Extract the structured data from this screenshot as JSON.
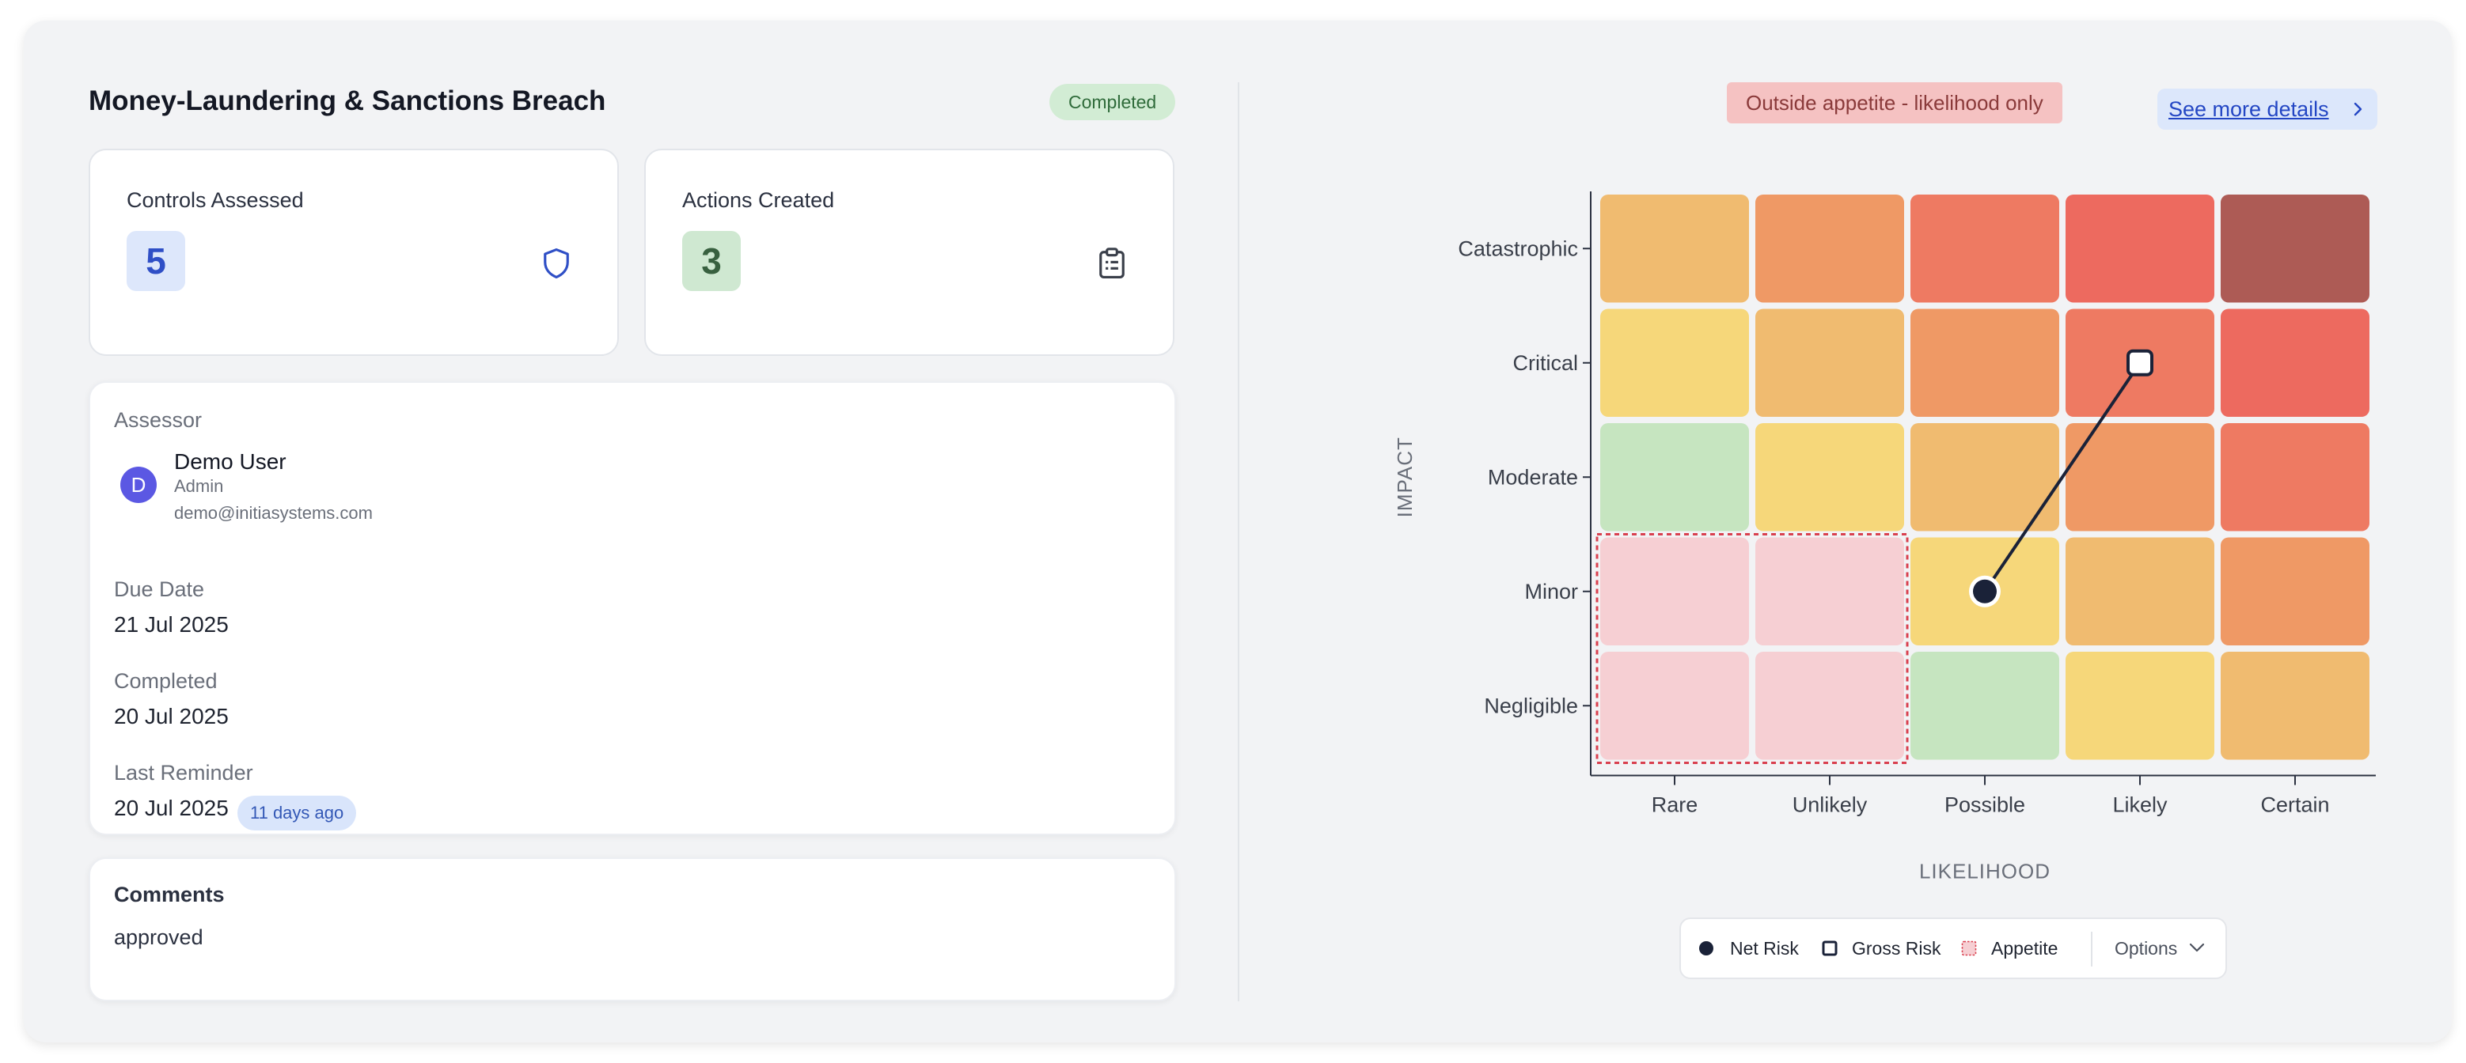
{
  "risk": {
    "title": "Money-Laundering & Sanctions Breach",
    "status": "Completed"
  },
  "metrics": {
    "controls_label": "Controls Assessed",
    "controls_value": "5",
    "controls_icon": "shield-icon",
    "actions_label": "Actions Created",
    "actions_value": "3",
    "actions_icon": "clipboard-icon"
  },
  "details": {
    "assessor_label": "Assessor",
    "assessor_initial": "D",
    "assessor_name": "Demo User",
    "assessor_role": "Admin",
    "assessor_email": "demo@initiasystems.com",
    "due_label": "Due Date",
    "due_value": "21 Jul 2025",
    "completed_label": "Completed",
    "completed_value": "20 Jul 2025",
    "reminder_label": "Last Reminder",
    "reminder_value": "20 Jul 2025",
    "reminder_relative": "11 days ago"
  },
  "comments": {
    "title": "Comments",
    "text": "approved"
  },
  "matrix": {
    "appetite_banner": "Outside appetite - likelihood only",
    "details_link": "See more details",
    "y_axis_label": "IMPACT",
    "x_axis_label": "LIKELIHOOD",
    "impact_levels": [
      "Catastrophic",
      "Critical",
      "Moderate",
      "Minor",
      "Negligible"
    ],
    "likelihood_levels": [
      "Rare",
      "Unlikely",
      "Possible",
      "Likely",
      "Certain"
    ],
    "cell_colors": [
      [
        "#f0bb70",
        "#ef9965",
        "#ee7a62",
        "#ed6a5f",
        "#ad5b55"
      ],
      [
        "#f6d77a",
        "#f0bb70",
        "#ef9965",
        "#ee7a62",
        "#ed6a5f"
      ],
      [
        "#c6e5c0",
        "#f6d77a",
        "#f0bb70",
        "#ef9965",
        "#ee7a62"
      ],
      [
        "#f6cfd3",
        "#f6cfd3",
        "#f6d77a",
        "#f0bb70",
        "#ef9965"
      ],
      [
        "#f6cfd3",
        "#f6cfd3",
        "#c6e5c0",
        "#f6d77a",
        "#f0bb70"
      ]
    ],
    "appetite_region": {
      "impact_levels": [
        "Minor",
        "Negligible"
      ],
      "likelihood_levels": [
        "Rare",
        "Unlikely"
      ]
    },
    "net_risk": {
      "likelihood": "Possible",
      "impact": "Minor"
    },
    "gross_risk": {
      "likelihood": "Likely",
      "impact": "Critical"
    }
  },
  "legend": {
    "net_label": "Net Risk",
    "gross_label": "Gross Risk",
    "appetite_label": "Appetite",
    "options_label": "Options"
  },
  "colors": {
    "net_marker": "#1a2238",
    "appetite_outline": "#d9404f",
    "accent": "#2346c4"
  }
}
